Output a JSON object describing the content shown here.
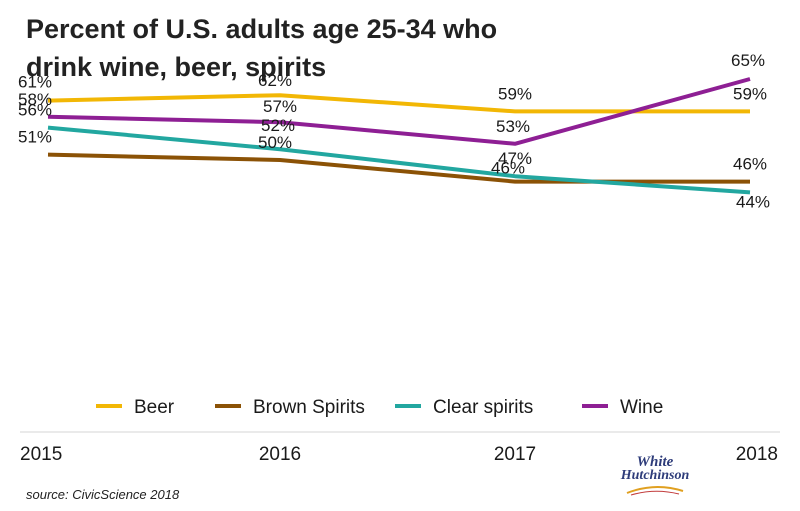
{
  "title_line1": "Percent of U.S. adults age 25-34 who",
  "title_line2": "drink wine, beer, spirits",
  "source": "source: CivicScience 2018",
  "logo": {
    "line1": "White",
    "line2": "Hutchinson"
  },
  "chart_data": {
    "type": "line",
    "x": [
      "2015",
      "2016",
      "2017",
      "2018"
    ],
    "ylim": [
      40,
      67
    ],
    "grid": false,
    "legend_position": "bottom",
    "series": [
      {
        "name": "Beer",
        "color": "#f2b705",
        "values": [
          61,
          62,
          59,
          59
        ],
        "labels": [
          "61%",
          "62%",
          "59%",
          "59%"
        ]
      },
      {
        "name": "Brown Spirits",
        "color": "#8b5206",
        "values": [
          51,
          50,
          46,
          46
        ],
        "labels": [
          "51%",
          "50%",
          "46%",
          "46%"
        ]
      },
      {
        "name": "Clear spirits",
        "color": "#22a7a0",
        "values": [
          56,
          52,
          47,
          44
        ],
        "labels": [
          "56%",
          "52%",
          "47%",
          "44%"
        ]
      },
      {
        "name": "Wine",
        "color": "#8e1f94",
        "values": [
          58,
          57,
          53,
          65
        ],
        "labels": [
          "58%",
          "57%",
          "53%",
          "65%"
        ]
      }
    ]
  }
}
